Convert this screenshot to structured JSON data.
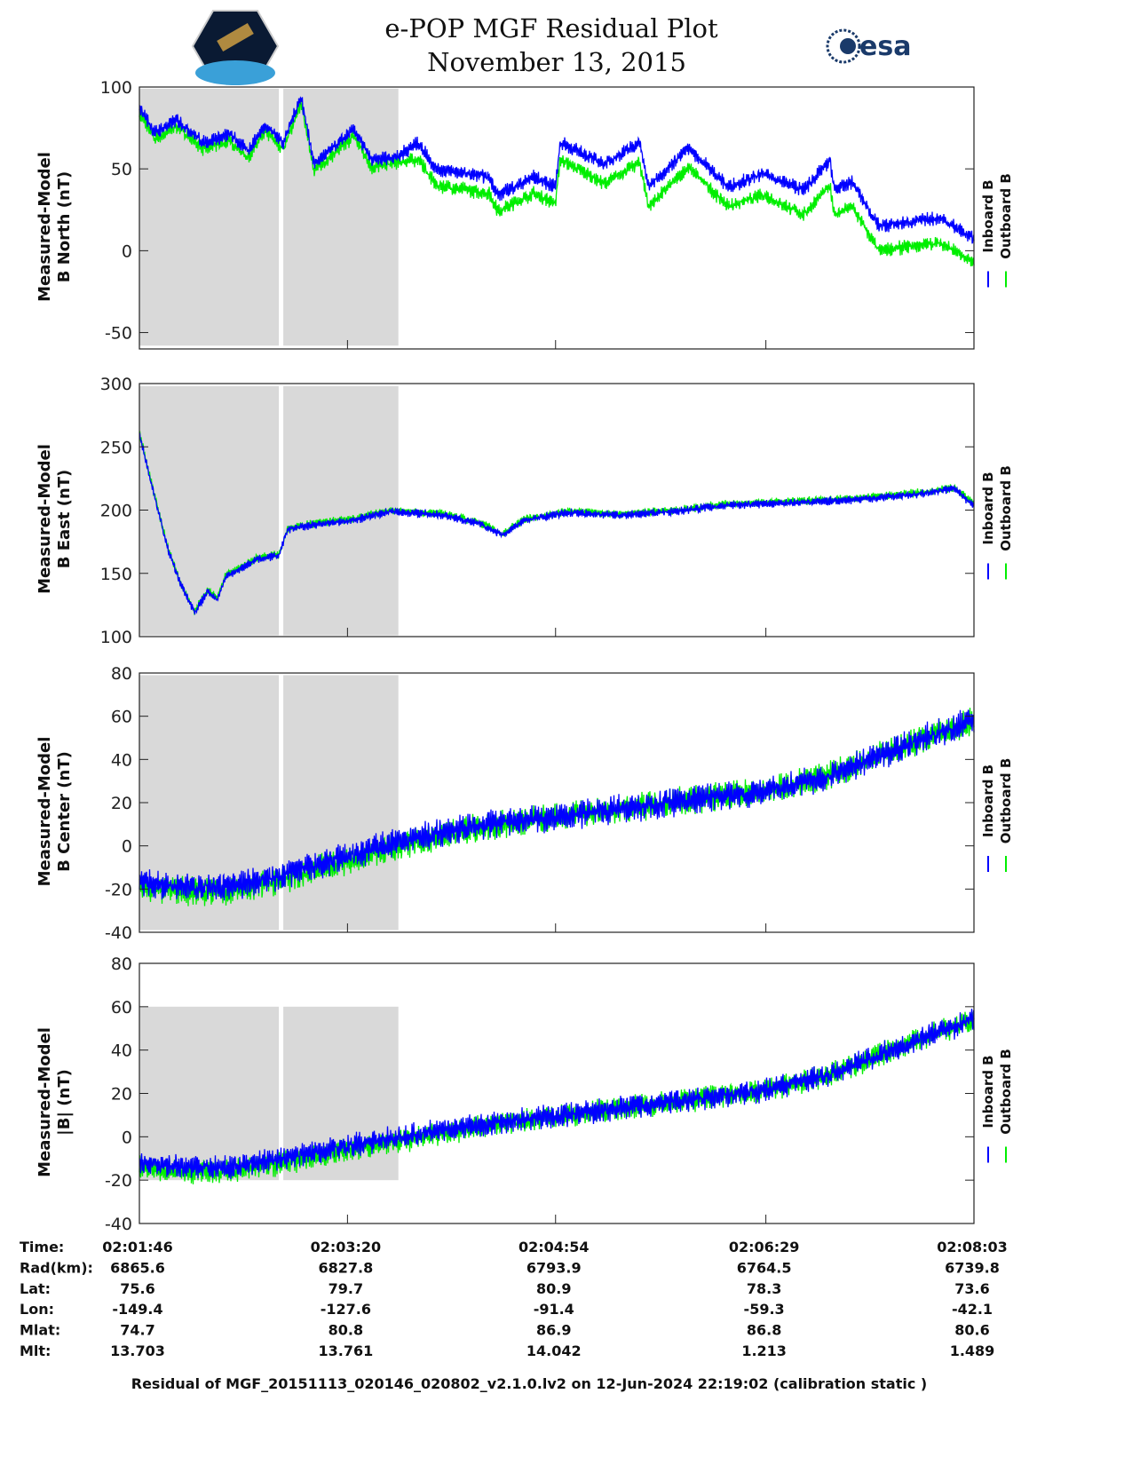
{
  "chart_data": {
    "type": "line",
    "title": "e-POP MGF Residual Plot",
    "subtitle": "November 13, 2015",
    "logos": {
      "left": "CASSIOPE",
      "right": "esa"
    },
    "x_unit": "seconds since 02:01:46",
    "xlim": [
      0,
      377
    ],
    "x_ticks_s": [
      0,
      94,
      188,
      283,
      377
    ],
    "shaded_intervals_s": [
      [
        0,
        63
      ],
      [
        65,
        117
      ]
    ],
    "legend": {
      "placement": "right",
      "entries": [
        {
          "label": "Inboard B",
          "color": "#0000ff"
        },
        {
          "label": "Outboard B",
          "color": "#00ee00"
        }
      ]
    },
    "panels": [
      {
        "ylabel": [
          "Measured-Model",
          "B North (nT)"
        ],
        "ylim": [
          -60,
          100
        ],
        "yticks": [
          100,
          50,
          0,
          -50
        ],
        "shade_y": [
          -58,
          99
        ],
        "noise": 4,
        "x": [
          0,
          7,
          17,
          29,
          41,
          49,
          57,
          65,
          73,
          79,
          97,
          105,
          117,
          126,
          134,
          158,
          162,
          178,
          188,
          190,
          210,
          226,
          230,
          248,
          266,
          282,
          300,
          312,
          314,
          322,
          334,
          362,
          377
        ],
        "series": [
          {
            "name": "Inboard B",
            "values": [
              88,
              72,
              80,
              66,
              71,
              61,
              77,
              66,
              94,
              53,
              74,
              55,
              58,
              66,
              50,
              45,
              34,
              45,
              39,
              66,
              53,
              66,
              39,
              63,
              39,
              47,
              37,
              55,
              37,
              42,
              15,
              20,
              7
            ]
          },
          {
            "name": "Outboard B",
            "values": [
              84,
              68,
              76,
              62,
              67,
              57,
              73,
              62,
              90,
              49,
              70,
              51,
              54,
              56,
              40,
              35,
              24,
              35,
              29,
              56,
              41,
              54,
              27,
              51,
              27,
              34,
              22,
              40,
              22,
              27,
              0,
              5,
              -8
            ]
          }
        ]
      },
      {
        "ylabel": [
          "Measured-Model",
          "B East (nT)"
        ],
        "ylim": [
          100,
          300
        ],
        "yticks": [
          300,
          250,
          200,
          150,
          100
        ],
        "shade_y": [
          101,
          298
        ],
        "noise": 3,
        "x": [
          0,
          5,
          13,
          19,
          25,
          31,
          35,
          39,
          53,
          63,
          67,
          81,
          97,
          113,
          138,
          154,
          164,
          174,
          194,
          218,
          242,
          266,
          298,
          322,
          354,
          368,
          377
        ],
        "series": [
          {
            "name": "Inboard B",
            "values": [
              260,
              224,
              168,
              140,
              119,
              136,
              129,
              147,
              161,
              164,
              185,
              189,
              192,
              199,
              196,
              189,
              180,
              192,
              198,
              196,
              199,
              204,
              206,
              208,
              213,
              217,
              203
            ]
          },
          {
            "name": "Outboard B",
            "values": [
              261,
              225,
              169,
              141,
              120,
              137,
              130,
              148,
              162,
              165,
              186,
              190,
              193,
              200,
              197,
              190,
              181,
              193,
              199,
              197,
              200,
              205,
              207,
              209,
              214,
              218,
              205
            ]
          }
        ]
      },
      {
        "ylabel": [
          "Measured-Model",
          "B Center (nT)"
        ],
        "ylim": [
          -40,
          80
        ],
        "yticks": [
          80,
          60,
          40,
          20,
          0,
          -20,
          -40
        ],
        "shade_y": [
          -39,
          79
        ],
        "noise": 6,
        "x": [
          0,
          20,
          40,
          60,
          80,
          100,
          117,
          150,
          200,
          240,
          280,
          310,
          330,
          355,
          377
        ],
        "series": [
          {
            "name": "Inboard B",
            "values": [
              -17,
              -19,
              -19,
              -15,
              -9,
              -3,
              2,
              9,
              15,
              20,
              25,
              32,
              40,
              50,
              58
            ]
          },
          {
            "name": "Outboard B",
            "values": [
              -19,
              -21,
              -21,
              -17,
              -11,
              -5,
              0,
              8,
              15,
              20,
              25,
              32,
              40,
              50,
              58
            ]
          }
        ]
      },
      {
        "ylabel": [
          "Measured-Model",
          "|B| (nT)"
        ],
        "ylim": [
          -40,
          80
        ],
        "yticks": [
          80,
          60,
          40,
          20,
          0,
          -20,
          -40
        ],
        "shade_y": [
          -20,
          60
        ],
        "noise": 5,
        "x": [
          0,
          20,
          40,
          60,
          80,
          100,
          117,
          150,
          200,
          240,
          280,
          310,
          330,
          355,
          377
        ],
        "series": [
          {
            "name": "Inboard B",
            "values": [
              -12,
              -14,
              -14,
              -11,
              -7,
              -3,
              0,
              5,
              11,
              16,
              21,
              28,
              36,
              46,
              54
            ]
          },
          {
            "name": "Outboard B",
            "values": [
              -14,
              -16,
              -16,
              -13,
              -9,
              -5,
              -2,
              4,
              11,
              16,
              21,
              28,
              36,
              46,
              54
            ]
          }
        ]
      }
    ],
    "table": {
      "rows": [
        {
          "label": "Time:",
          "values": [
            "02:01:46",
            "02:03:20",
            "02:04:54",
            "02:06:29",
            "02:08:03"
          ]
        },
        {
          "label": "Rad(km):",
          "values": [
            "6865.6",
            "6827.8",
            "6793.9",
            "6764.5",
            "6739.8"
          ]
        },
        {
          "label": "Lat:",
          "values": [
            "75.6",
            "79.7",
            "80.9",
            "78.3",
            "73.6"
          ]
        },
        {
          "label": "Lon:",
          "values": [
            "-149.4",
            "-127.6",
            "-91.4",
            "-59.3",
            "-42.1"
          ]
        },
        {
          "label": "Mlat:",
          "values": [
            "74.7",
            "80.8",
            "86.9",
            "86.8",
            "80.6"
          ]
        },
        {
          "label": "Mlt:",
          "values": [
            "13.703",
            "13.761",
            "14.042",
            "1.213",
            "1.489"
          ]
        }
      ]
    },
    "footer": "Residual of MGF_20151113_020146_020802_v2.1.0.lv2 on 12-Jun-2024 22:19:02 (calibration static )"
  }
}
